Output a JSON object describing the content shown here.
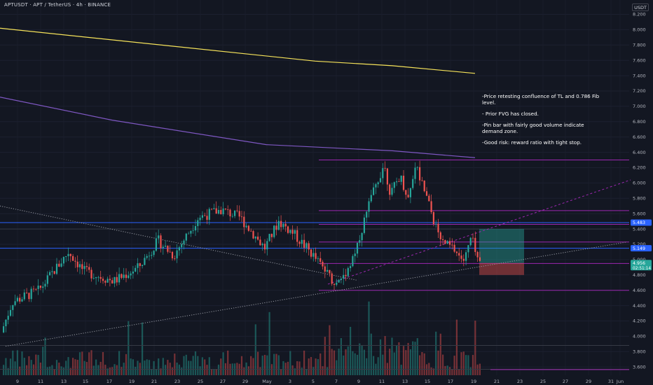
{
  "header": {
    "symbol_title": "APTUSDT · APT / TetherUS · 4h · BINANCE",
    "currency_label": "USDT"
  },
  "annotation": {
    "lines": [
      "-Price retesting confluence of TL and 0.786 Fib level.",
      "- Prior FVG has closed.",
      "-Pin bar with fairly good volume indicate demand zone.",
      "-Good risk: reward ratio with tight stop."
    ]
  },
  "colors": {
    "background": "#131722",
    "up": "#26a69a",
    "down": "#ef5350",
    "ma_yellow": "#f6e35a",
    "ma_purple": "#7e57c2",
    "level_purple": "#9c27b0",
    "level_blue": "#2962ff",
    "axis_text": "#b2b5be"
  },
  "chart_data": {
    "type": "candlestick",
    "interval": "4h",
    "y_axis_ticks": [
      8.2,
      8.0,
      7.8,
      7.6,
      7.4,
      7.2,
      7.0,
      6.8,
      6.6,
      6.4,
      6.2,
      6.0,
      5.8,
      5.6,
      5.4,
      5.2,
      5.0,
      4.8,
      4.6,
      4.4,
      4.2,
      4.0,
      3.8,
      3.6
    ],
    "y_axis_labels": [
      "8.200",
      "8.000",
      "7.800",
      "7.600",
      "7.400",
      "7.200",
      "7.000",
      "6.800",
      "6.600",
      "6.400",
      "6.200",
      "6.000",
      "5.800",
      "5.600",
      "5.400",
      "5.200",
      "5.000",
      "4.800",
      "4.600",
      "4.400",
      "4.200",
      "4.000",
      "3.800",
      "3.600"
    ],
    "ylim": [
      3.55,
      8.28
    ],
    "x_axis_labels": [
      "9",
      "11",
      "13",
      "15",
      "17",
      "19",
      "21",
      "23",
      "25",
      "27",
      "29",
      "May",
      "3",
      "5",
      "7",
      "9",
      "11",
      "13",
      "15",
      "17",
      "19",
      "21",
      "23",
      "25",
      "27",
      "29",
      "31",
      "Jun"
    ],
    "price_tags": [
      {
        "label": "5.483",
        "value": 5.483,
        "color": "#2962ff"
      },
      {
        "label": "5.149",
        "value": 5.149,
        "color": "#2962ff"
      },
      {
        "label": "4.956",
        "sublabel": "02:51:14",
        "value": 4.956,
        "color": "#26a69a"
      }
    ],
    "horizontal_levels": {
      "blue": [
        5.483,
        5.149
      ],
      "purple": [
        6.3,
        5.64,
        5.46,
        5.23,
        4.95,
        4.6
      ],
      "gray": [
        5.4,
        3.88,
        3.57
      ]
    },
    "moving_averages": [
      {
        "color": "#f6e35a",
        "points": [
          [
            0,
            8.02
          ],
          [
            450,
            7.59
          ],
          [
            560,
            7.53
          ],
          [
            678,
            7.43
          ]
        ]
      },
      {
        "color": "#7e57c2",
        "points": [
          [
            0,
            7.12
          ],
          [
            160,
            6.82
          ],
          [
            380,
            6.5
          ],
          [
            560,
            6.42
          ],
          [
            678,
            6.33
          ]
        ]
      }
    ],
    "trendlines": [
      {
        "style": "dotted",
        "points": [
          [
            0,
            5.7
          ],
          [
            510,
            4.73
          ]
        ]
      },
      {
        "style": "dotted",
        "points": [
          [
            8,
            3.87
          ],
          [
            895,
            5.23
          ]
        ]
      },
      {
        "style": "dashed-purple",
        "points": [
          [
            468,
            4.68
          ],
          [
            900,
            6.04
          ]
        ]
      }
    ],
    "position": {
      "entry": 4.956,
      "target": 5.4,
      "stop": 4.8
    },
    "key_prices": {
      "start": 4.05,
      "apr13_high": 5.1,
      "apr19_low": 4.72,
      "apr27_high": 5.65,
      "may7_low": 4.67,
      "may12_high": 6.25,
      "may14_high": 6.25,
      "current": 4.956
    }
  }
}
